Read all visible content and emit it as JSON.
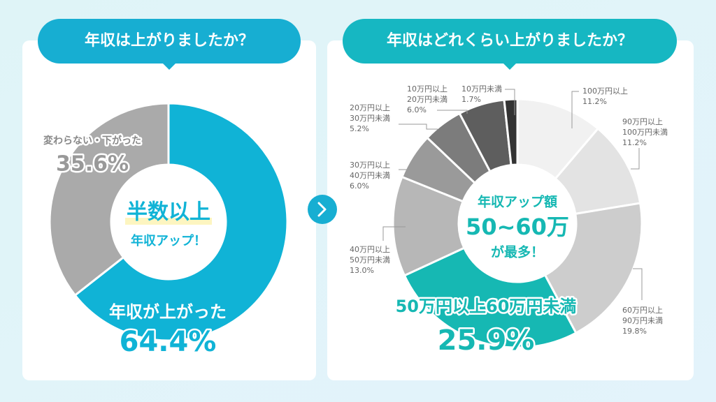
{
  "chart_data": [
    {
      "type": "pie",
      "title": "年収は上がりましたか？",
      "categories": [
        "年収が上がった",
        "変わらない・下がった"
      ],
      "values": [
        64.4,
        35.6
      ],
      "value_labels": [
        "64.4%",
        "35.6%"
      ],
      "colors": [
        "#10b3d6",
        "#aaaaaa"
      ],
      "center_text": [
        "半数以上",
        "年収アップ！"
      ]
    },
    {
      "type": "pie",
      "title": "年収はどれくらい上がりましたか？",
      "categories": [
        [
          "100万円以上"
        ],
        [
          "90万円以上",
          "100万円未満"
        ],
        [
          "60万円以上",
          "90万円未満"
        ],
        [
          "50万円以上",
          "60万円未満"
        ],
        [
          "40万円以上",
          "50万円未満"
        ],
        [
          "30万円以上",
          "40万円未満"
        ],
        [
          "20万円以上",
          "30万円未満"
        ],
        [
          "10万円以上",
          "20万円未満"
        ],
        [
          "10万円未満"
        ]
      ],
      "values": [
        11.2,
        11.2,
        19.8,
        25.9,
        13.0,
        6.0,
        5.2,
        6.0,
        1.7
      ],
      "value_labels": [
        "11.2%",
        "11.2%",
        "19.8%",
        "25.9%",
        "13.0%",
        "6.0%",
        "5.2%",
        "6.0%",
        "1.7%"
      ],
      "colors": [
        "#f1f1f1",
        "#e3e3e3",
        "#cdcdcd",
        "#16b8b3",
        "#b7b7b7",
        "#9a9a9a",
        "#7c7c7c",
        "#5e5e5e",
        "#333333"
      ],
      "center_text": [
        "年収アップ額",
        "50~60万",
        "が最多！"
      ]
    }
  ]
}
